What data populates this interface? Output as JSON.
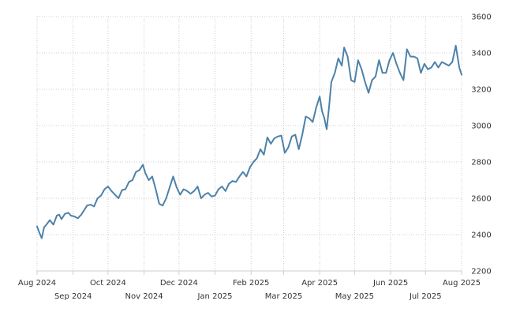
{
  "chart_data": {
    "type": "line",
    "title": "",
    "xlabel": "",
    "ylabel": "",
    "ylim": [
      2200,
      3600
    ],
    "xlim": [
      "2024-08-01",
      "2025-08-01"
    ],
    "y_ticks": [
      "2200",
      "2400",
      "2600",
      "2800",
      "3000",
      "3200",
      "3400",
      "3600"
    ],
    "x_ticks_row1": [
      {
        "date": "2024-08-01",
        "label": "Aug 2024"
      },
      {
        "date": "2024-10-01",
        "label": "Oct 2024"
      },
      {
        "date": "2024-12-01",
        "label": "Dec 2024"
      },
      {
        "date": "2025-02-01",
        "label": "Feb 2025"
      },
      {
        "date": "2025-04-01",
        "label": "Apr 2025"
      },
      {
        "date": "2025-06-01",
        "label": "Jun 2025"
      },
      {
        "date": "2025-08-01",
        "label": "Aug 2025"
      }
    ],
    "x_ticks_row2": [
      {
        "date": "2024-09-01",
        "label": "Sep 2024"
      },
      {
        "date": "2024-11-01",
        "label": "Nov 2024"
      },
      {
        "date": "2025-01-01",
        "label": "Jan 2025"
      },
      {
        "date": "2025-03-01",
        "label": "Mar 2025"
      },
      {
        "date": "2025-05-01",
        "label": "May 2025"
      },
      {
        "date": "2025-07-01",
        "label": "Jul 2025"
      }
    ],
    "y_axis_position": "right",
    "grid": true,
    "line_color": "#4d82a8",
    "series": [
      {
        "x": [
          "2024-08-01",
          "2024-08-03",
          "2024-08-05",
          "2024-08-07",
          "2024-08-09",
          "2024-08-12",
          "2024-08-15",
          "2024-08-18",
          "2024-08-20",
          "2024-08-22",
          "2024-08-25",
          "2024-08-28",
          "2024-08-30",
          "2024-09-02",
          "2024-09-05",
          "2024-09-08",
          "2024-09-10",
          "2024-09-13",
          "2024-09-16",
          "2024-09-19",
          "2024-09-22",
          "2024-09-25",
          "2024-09-28",
          "2024-10-01",
          "2024-10-04",
          "2024-10-07",
          "2024-10-10",
          "2024-10-13",
          "2024-10-16",
          "2024-10-19",
          "2024-10-22",
          "2024-10-25",
          "2024-10-28",
          "2024-10-31",
          "2024-11-02",
          "2024-11-05",
          "2024-11-08",
          "2024-11-11",
          "2024-11-14",
          "2024-11-17",
          "2024-11-20",
          "2024-11-23",
          "2024-11-26",
          "2024-11-29",
          "2024-12-02",
          "2024-12-05",
          "2024-12-08",
          "2024-12-11",
          "2024-12-14",
          "2024-12-17",
          "2024-12-20",
          "2024-12-23",
          "2024-12-26",
          "2024-12-29",
          "2025-01-01",
          "2025-01-04",
          "2025-01-07",
          "2025-01-10",
          "2025-01-13",
          "2025-01-16",
          "2025-01-19",
          "2025-01-22",
          "2025-01-25",
          "2025-01-28",
          "2025-01-31",
          "2025-02-03",
          "2025-02-06",
          "2025-02-09",
          "2025-02-12",
          "2025-02-15",
          "2025-02-18",
          "2025-02-21",
          "2025-02-24",
          "2025-02-27",
          "2025-03-02",
          "2025-03-05",
          "2025-03-08",
          "2025-03-11",
          "2025-03-14",
          "2025-03-17",
          "2025-03-20",
          "2025-03-23",
          "2025-03-26",
          "2025-03-29",
          "2025-04-01",
          "2025-04-03",
          "2025-04-05",
          "2025-04-07",
          "2025-04-09",
          "2025-04-11",
          "2025-04-14",
          "2025-04-17",
          "2025-04-20",
          "2025-04-22",
          "2025-04-25",
          "2025-04-28",
          "2025-05-01",
          "2025-05-04",
          "2025-05-07",
          "2025-05-10",
          "2025-05-13",
          "2025-05-16",
          "2025-05-19",
          "2025-05-22",
          "2025-05-25",
          "2025-05-28",
          "2025-05-31",
          "2025-06-03",
          "2025-06-06",
          "2025-06-09",
          "2025-06-12",
          "2025-06-15",
          "2025-06-18",
          "2025-06-21",
          "2025-06-24",
          "2025-06-27",
          "2025-06-30",
          "2025-07-03",
          "2025-07-06",
          "2025-07-09",
          "2025-07-12",
          "2025-07-15",
          "2025-07-18",
          "2025-07-21",
          "2025-07-24",
          "2025-07-27",
          "2025-07-30",
          "2025-08-01"
        ],
        "y": [
          2445,
          2410,
          2380,
          2440,
          2455,
          2480,
          2455,
          2505,
          2510,
          2485,
          2515,
          2520,
          2505,
          2500,
          2490,
          2510,
          2530,
          2560,
          2565,
          2555,
          2600,
          2615,
          2650,
          2665,
          2640,
          2620,
          2600,
          2645,
          2650,
          2690,
          2700,
          2745,
          2755,
          2785,
          2740,
          2700,
          2720,
          2650,
          2570,
          2560,
          2600,
          2660,
          2720,
          2660,
          2620,
          2650,
          2640,
          2625,
          2640,
          2665,
          2600,
          2620,
          2630,
          2610,
          2615,
          2650,
          2665,
          2640,
          2680,
          2695,
          2690,
          2720,
          2745,
          2720,
          2770,
          2800,
          2820,
          2870,
          2840,
          2935,
          2900,
          2930,
          2940,
          2945,
          2850,
          2880,
          2940,
          2950,
          2870,
          2950,
          3050,
          3040,
          3020,
          3100,
          3160,
          3080,
          3040,
          2980,
          3100,
          3240,
          3290,
          3370,
          3330,
          3430,
          3380,
          3250,
          3240,
          3360,
          3310,
          3240,
          3180,
          3250,
          3270,
          3360,
          3290,
          3290,
          3360,
          3400,
          3340,
          3290,
          3250,
          3420,
          3380,
          3380,
          3370,
          3290,
          3340,
          3310,
          3320,
          3350,
          3320,
          3350,
          3340,
          3330,
          3350,
          3440,
          3320,
          3280
        ]
      }
    ]
  }
}
